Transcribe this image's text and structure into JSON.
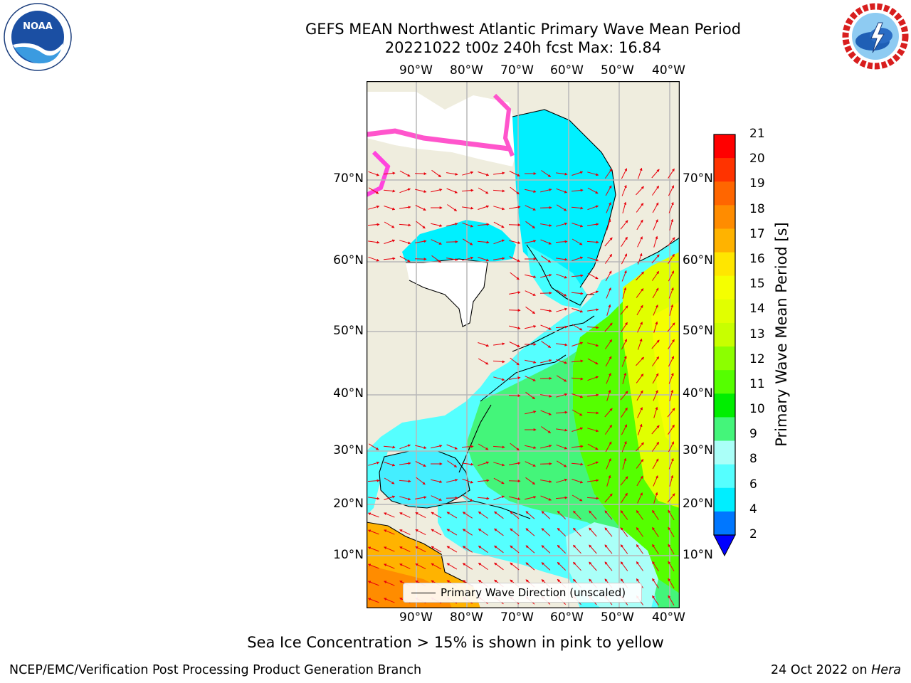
{
  "header": {
    "title_line1": "GEFS MEAN Northwest Atlantic Primary Wave Mean Period",
    "title_line2": "20221022 t00z 240h fcst   Max: 16.84"
  },
  "logos": {
    "noaa": {
      "text": "NOAA",
      "ring_text": "NATIONAL OCEANIC AND ATMOSPHERIC ADMINISTRATION · U.S. DEPARTMENT OF COMMERCE"
    },
    "nws": {
      "ring_text": "NATIONAL WEATHER SERVICE"
    }
  },
  "map": {
    "lon_ticks": [
      "90°W",
      "80°W",
      "70°W",
      "60°W",
      "50°W",
      "40°W"
    ],
    "lat_ticks": [
      "70°N",
      "60°N",
      "50°N",
      "40°N",
      "30°N",
      "20°N",
      "10°N"
    ],
    "legend": "Primary Wave Direction (unscaled)",
    "colors": {
      "land": "#efedde",
      "coast": "#000000",
      "grid": "#b8b8b8",
      "arrow": "#e8000b"
    }
  },
  "colorbar": {
    "label": "Primary Wave Mean Period [s]",
    "ticks": [
      "21",
      "20",
      "19",
      "18",
      "17",
      "16",
      "15",
      "14",
      "13",
      "12",
      "11",
      "10",
      "9",
      "8",
      "6",
      "4",
      "2"
    ],
    "colors_top_down": [
      "#ff0000",
      "#ff3300",
      "#ff6600",
      "#ff8c00",
      "#ffb300",
      "#ffe600",
      "#f5ff00",
      "#e1ff00",
      "#c8ff00",
      "#8cff00",
      "#55ff00",
      "#00ee00",
      "#44f57a",
      "#aafff8",
      "#55ffff",
      "#00eeff",
      "#0077ff"
    ],
    "extend_color": "#0000ff"
  },
  "note": "Sea Ice Concentration > 15% is shown in pink to yellow",
  "footer": {
    "left": "NCEP/EMC/Verification Post Processing Product Generation Branch",
    "right_date": "24 Oct 2022 on ",
    "right_host": "Hera"
  }
}
